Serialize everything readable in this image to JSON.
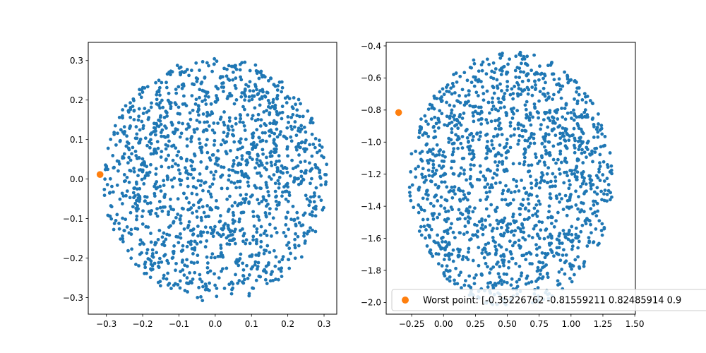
{
  "chart_data": [
    {
      "type": "scatter",
      "title": "",
      "xlabel": "",
      "ylabel": "",
      "xlim": [
        -0.35,
        0.335
      ],
      "ylim": [
        -0.342,
        0.346
      ],
      "xticks": [
        -0.3,
        -0.2,
        -0.1,
        0.0,
        0.1,
        0.2,
        0.3
      ],
      "xtick_labels": [
        "−0.3",
        "−0.2",
        "−0.1",
        "0.0",
        "0.1",
        "0.2",
        "0.3"
      ],
      "yticks": [
        -0.3,
        -0.2,
        -0.1,
        0.0,
        0.1,
        0.2,
        0.3
      ],
      "ytick_labels": [
        "−0.3",
        "−0.2",
        "−0.1",
        "0.0",
        "0.1",
        "0.2",
        "0.3"
      ],
      "grid": false,
      "series": [
        {
          "color": "#1f77b4",
          "marker_size": "small",
          "count": 1500,
          "distribution": "roughly uniform disk",
          "center": [
            0.0,
            0.0
          ],
          "radius": 0.31,
          "seed": 1337,
          "points": []
        },
        {
          "color": "#ff7f0e",
          "marker_size": "large",
          "points": [
            [
              -0.3175,
              0.0115
            ]
          ]
        }
      ]
    },
    {
      "type": "scatter",
      "title": "",
      "xlabel": "",
      "ylabel": "",
      "xlim": [
        -0.45,
        1.505
      ],
      "ylim": [
        -2.073,
        -0.378
      ],
      "xticks": [
        -0.25,
        0.0,
        0.25,
        0.5,
        0.75,
        1.0,
        1.25,
        1.5
      ],
      "xtick_labels": [
        "−0.25",
        "0.00",
        "0.25",
        "0.50",
        "0.75",
        "1.00",
        "1.25",
        "1.50"
      ],
      "yticks": [
        -2.0,
        -1.8,
        -1.6,
        -1.4,
        -1.2,
        -1.0,
        -0.8,
        -0.6,
        -0.4
      ],
      "ytick_labels": [
        "−2.0",
        "−1.8",
        "−1.6",
        "−1.4",
        "−1.2",
        "−1.0",
        "−0.8",
        "−0.6",
        "−0.4"
      ],
      "grid": false,
      "legend": {
        "position": "lower-right",
        "entries": [
          {
            "label": "Worst point: [-0.35226762 -0.81559211  0.82485914  0.9",
            "color": "#ff7f0e"
          }
        ]
      },
      "series": [
        {
          "color": "#1f77b4",
          "marker_size": "small",
          "count": 1500,
          "distribution": "roughly uniform disk",
          "center": [
            0.5272,
            -1.2325
          ],
          "radius": 0.8,
          "seed": 4242,
          "points": []
        },
        {
          "color": "#ff7f0e",
          "marker_size": "large",
          "points": [
            [
              -0.3523,
              -0.8156
            ]
          ]
        }
      ]
    }
  ]
}
